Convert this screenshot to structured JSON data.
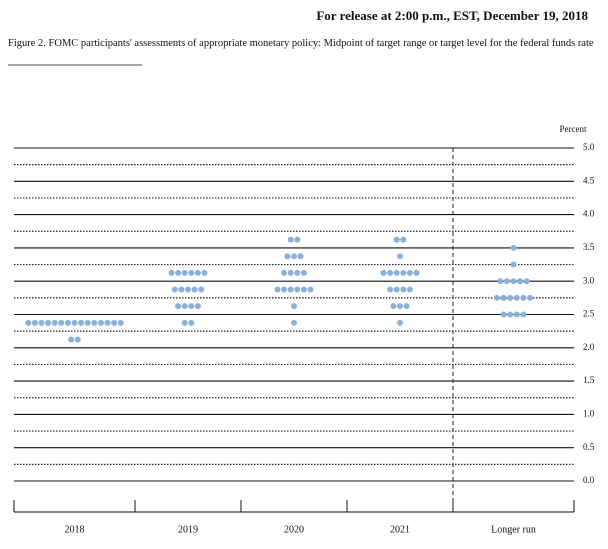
{
  "chart_data": {
    "type": "dotplot",
    "header": "For release at 2:00 p.m., EST, December 19, 2018",
    "title": "Figure 2. FOMC participants' assessments of appropriate monetary policy: Midpoint of target range or target level for the federal funds rate",
    "y_label": "Percent",
    "categories": [
      "2018",
      "2019",
      "2020",
      "2021",
      "Longer run"
    ],
    "values": [
      [
        2.125,
        2.375
      ],
      [
        2.375,
        2.625,
        2.875,
        3.125
      ],
      [
        2.375,
        2.625,
        2.875,
        3.125,
        3.375,
        3.625
      ],
      [
        2.375,
        2.625,
        2.875,
        3.125,
        3.375,
        3.625
      ],
      [
        2.5,
        2.75,
        3.0,
        3.25,
        3.5
      ]
    ],
    "counts": [
      [
        2,
        15
      ],
      [
        2,
        4,
        5,
        6
      ],
      [
        1,
        1,
        6,
        4,
        3,
        2
      ],
      [
        1,
        3,
        4,
        6,
        1,
        2
      ],
      [
        4,
        6,
        5,
        1,
        1
      ]
    ],
    "color": "#8fb0d6",
    "ylim": [
      0,
      5
    ],
    "yticks": [
      {
        "value": 0,
        "label": "0.0"
      },
      {
        "value": 0.5,
        "label": "0.5"
      },
      {
        "value": 1,
        "label": "1.0"
      },
      {
        "value": 1.5,
        "label": "1.5"
      },
      {
        "value": 2,
        "label": "2.0"
      },
      {
        "value": 2.5,
        "label": "2.5"
      },
      {
        "value": 3,
        "label": "3.0"
      },
      {
        "value": 3.5,
        "label": "3.5"
      },
      {
        "value": 4,
        "label": "4.0"
      },
      {
        "value": 4.5,
        "label": "4.5"
      },
      {
        "value": 5,
        "label": "5.0"
      }
    ]
  }
}
